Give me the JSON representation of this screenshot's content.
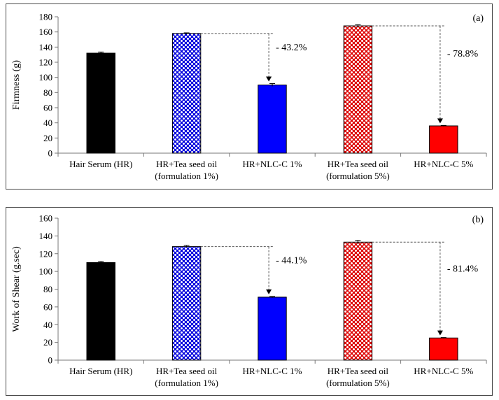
{
  "chart_data": [
    {
      "type": "bar",
      "panel_label": "(a)",
      "ylabel": "Firmness (g)",
      "ylim": [
        0,
        180
      ],
      "yticks": [
        0,
        20,
        40,
        60,
        80,
        100,
        120,
        140,
        160,
        180
      ],
      "categories": [
        [
          "Hair Serum (HR)"
        ],
        [
          "HR+Tea seed oil",
          "(formulation 1%)"
        ],
        [
          "HR+NLC-C 1%"
        ],
        [
          "HR+Tea seed oil",
          "(formulation 5%)"
        ],
        [
          "HR+NLC-C 5%"
        ]
      ],
      "values": [
        132,
        158,
        90,
        168,
        36
      ],
      "errors": [
        1.5,
        0.8,
        1.8,
        1.5,
        0.6
      ],
      "bar_styles": [
        "solid-black",
        "pattern-blue",
        "solid-blue",
        "pattern-red",
        "solid-red"
      ],
      "annotations": [
        {
          "from": 1,
          "to": 2,
          "text": "- 43.2%"
        },
        {
          "from": 3,
          "to": 4,
          "text": "- 78.8%"
        }
      ]
    },
    {
      "type": "bar",
      "panel_label": "(b)",
      "ylabel": "Work of Shear (g.sec)",
      "ylim": [
        0,
        160
      ],
      "yticks": [
        0,
        20,
        40,
        60,
        80,
        100,
        120,
        140,
        160
      ],
      "categories": [
        [
          "Hair Serum (HR)"
        ],
        [
          "HR+Tea seed oil",
          "(formulation 1%)"
        ],
        [
          "HR+NLC-C 1%"
        ],
        [
          "HR+Tea seed oil",
          "(formulation 5%)"
        ],
        [
          "HR+NLC-C 5%"
        ]
      ],
      "values": [
        110,
        128,
        71,
        133,
        25
      ],
      "errors": [
        1.2,
        1.2,
        0.8,
        2.0,
        0.5
      ],
      "bar_styles": [
        "solid-black",
        "pattern-blue",
        "solid-blue",
        "pattern-red",
        "solid-red"
      ],
      "annotations": [
        {
          "from": 1,
          "to": 2,
          "text": "- 44.1%"
        },
        {
          "from": 3,
          "to": 4,
          "text": "- 81.4%"
        }
      ]
    }
  ],
  "colors": {
    "black": "#000000",
    "blue": "#0000ff",
    "red": "#ff0000",
    "pattern_blue_fg": "#0000dd",
    "pattern_red_fg": "#dd0000"
  }
}
